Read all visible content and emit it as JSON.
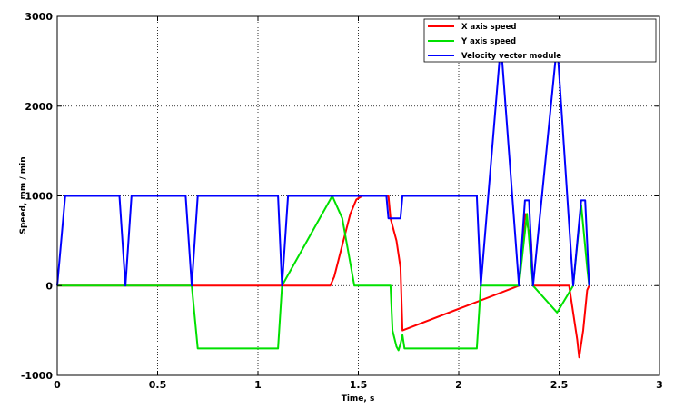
{
  "chart_data": {
    "type": "line",
    "xlabel": "Time, s",
    "ylabel": "Speed, mm / min",
    "xlim": [
      0,
      3
    ],
    "ylim": [
      -1000,
      3000
    ],
    "xticks": [
      0,
      0.5,
      1,
      1.5,
      2,
      2.5,
      3
    ],
    "xtick_labels": [
      "0",
      "0.5",
      "1",
      "1.5",
      "2",
      "2.5",
      "3"
    ],
    "yticks": [
      -1000,
      0,
      1000,
      2000,
      3000
    ],
    "ytick_labels": [
      "-1000",
      "0",
      "1000",
      "2000",
      "3000"
    ],
    "grid": true,
    "legend_position": "top-right",
    "series": [
      {
        "name": "X axis speed",
        "color": "#ff0000",
        "points": [
          [
            0,
            0
          ],
          [
            1.12,
            0
          ],
          [
            1.36,
            0
          ],
          [
            1.38,
            100
          ],
          [
            1.42,
            450
          ],
          [
            1.46,
            800
          ],
          [
            1.49,
            960
          ],
          [
            1.52,
            1000
          ],
          [
            1.65,
            1000
          ],
          [
            1.66,
            750
          ],
          [
            1.69,
            500
          ],
          [
            1.71,
            200
          ],
          [
            1.72,
            -500
          ],
          [
            2.3,
            0
          ],
          [
            2.33,
            800
          ],
          [
            2.36,
            500
          ],
          [
            2.37,
            0
          ],
          [
            2.55,
            0
          ],
          [
            2.59,
            -600
          ],
          [
            2.6,
            -800
          ],
          [
            2.62,
            -500
          ],
          [
            2.64,
            -50
          ],
          [
            2.65,
            0
          ]
        ]
      },
      {
        "name": "Y axis speed",
        "color": "#00e000",
        "points": [
          [
            0,
            0
          ],
          [
            0.34,
            0
          ],
          [
            0.67,
            0
          ],
          [
            0.7,
            -700
          ],
          [
            1.1,
            -700
          ],
          [
            1.12,
            0
          ],
          [
            1.37,
            1000
          ],
          [
            1.42,
            750
          ],
          [
            1.48,
            0
          ],
          [
            1.66,
            0
          ],
          [
            1.67,
            -500
          ],
          [
            1.69,
            -680
          ],
          [
            1.7,
            -720
          ],
          [
            1.71,
            -650
          ],
          [
            1.72,
            -550
          ],
          [
            1.73,
            -700
          ],
          [
            2.09,
            -700
          ],
          [
            2.11,
            0
          ],
          [
            2.3,
            0
          ],
          [
            2.34,
            800
          ],
          [
            2.37,
            0
          ],
          [
            2.49,
            -300
          ],
          [
            2.57,
            0
          ],
          [
            2.61,
            900
          ],
          [
            2.64,
            200
          ],
          [
            2.65,
            0
          ]
        ]
      },
      {
        "name": "Velocity vector module",
        "color": "#0000ff",
        "points": [
          [
            0,
            0
          ],
          [
            0.04,
            1000
          ],
          [
            0.31,
            1000
          ],
          [
            0.34,
            0
          ],
          [
            0.37,
            1000
          ],
          [
            0.64,
            1000
          ],
          [
            0.67,
            0
          ],
          [
            0.7,
            1000
          ],
          [
            1.1,
            1000
          ],
          [
            1.12,
            0
          ],
          [
            1.15,
            1000
          ],
          [
            1.64,
            1000
          ],
          [
            1.65,
            750
          ],
          [
            1.71,
            750
          ],
          [
            1.72,
            1000
          ],
          [
            2.09,
            1000
          ],
          [
            2.11,
            0
          ],
          [
            2.21,
            2700
          ],
          [
            2.3,
            0
          ],
          [
            2.33,
            950
          ],
          [
            2.35,
            950
          ],
          [
            2.37,
            0
          ],
          [
            2.49,
            2700
          ],
          [
            2.57,
            0
          ],
          [
            2.61,
            950
          ],
          [
            2.63,
            950
          ],
          [
            2.65,
            0
          ]
        ]
      }
    ]
  }
}
